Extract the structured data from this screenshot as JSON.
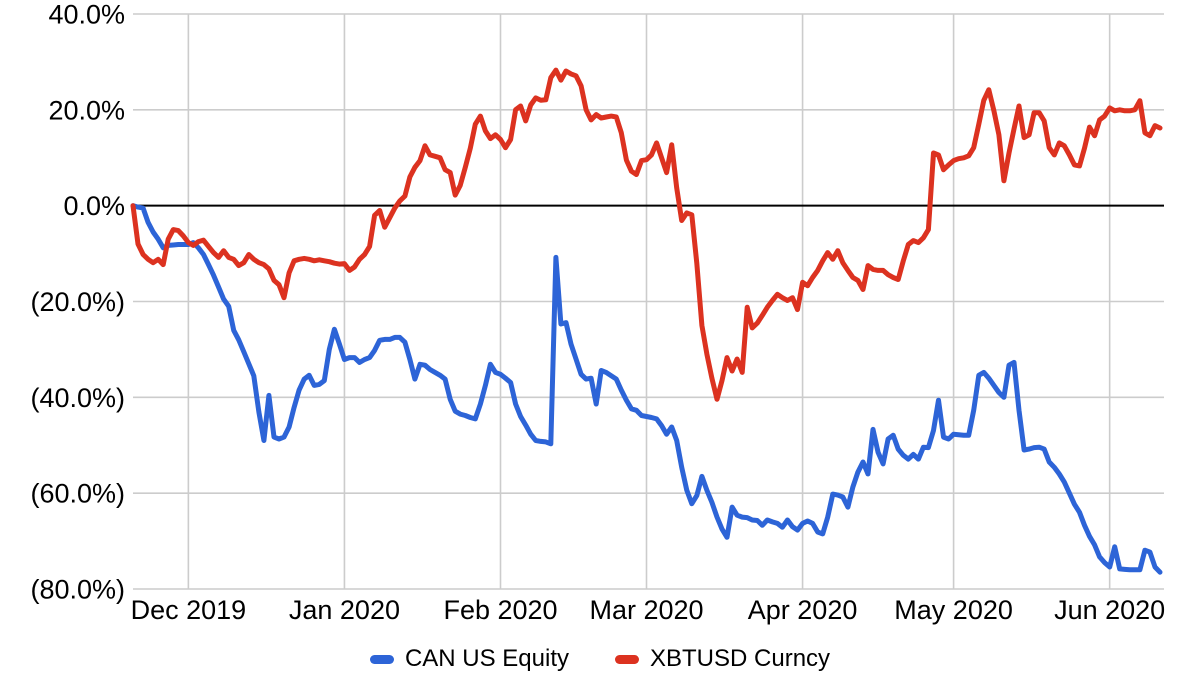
{
  "chart_data": {
    "type": "line",
    "title": "",
    "x_axis": {
      "start_date": "2019-11-20",
      "interval_days": 1,
      "total_days": 204,
      "tick_labels": [
        "Dec 2019",
        "Jan 2020",
        "Feb 2020",
        "Mar 2020",
        "Apr 2020",
        "May 2020",
        "Jun 2020"
      ],
      "tick_day_offsets": [
        11,
        42,
        73,
        102,
        133,
        163,
        194
      ]
    },
    "y_axis": {
      "unit": "percent",
      "min": -80,
      "max": 40,
      "tick_values": [
        40,
        20,
        0,
        -20,
        -40,
        -60,
        -80
      ],
      "tick_labels": [
        "40.0%",
        "20.0%",
        "0.0%",
        "(20.0%)",
        "(40.0%)",
        "(60.0%)",
        "(80.0%)"
      ],
      "negative_format": "parentheses"
    },
    "grid": {
      "show": true,
      "color": "#cccccc",
      "zero_line_color": "#000000"
    },
    "legend": {
      "position": "bottom",
      "items": [
        {
          "label": "CAN US Equity",
          "color": "#2d64d7"
        },
        {
          "label": "XBTUSD Curncy",
          "color": "#dc3220"
        }
      ]
    },
    "series": [
      {
        "name": "CAN US Equity",
        "color": "#2d64d7",
        "values": [
          0,
          -0.3,
          -0.5,
          -3.5,
          -5.5,
          -7,
          -8.8,
          -8.3,
          -8.2,
          -8.1,
          -8.1,
          -8.1,
          -7.7,
          -8.8,
          -10.2,
          -12.3,
          -14.5,
          -17,
          -19.5,
          -21,
          -26,
          -28,
          -30.5,
          -33,
          -35.5,
          -43.1,
          -49,
          -39.6,
          -48.3,
          -48.7,
          -48.3,
          -46.2,
          -42.1,
          -38.5,
          -36.2,
          -35.4,
          -37.5,
          -37.3,
          -36.5,
          -30,
          -25.8,
          -28.9,
          -32.1,
          -31.7,
          -31.7,
          -32.7,
          -32.1,
          -31.7,
          -30.2,
          -28.1,
          -27.9,
          -27.9,
          -27.5,
          -27.5,
          -28.5,
          -32.1,
          -36.2,
          -33.1,
          -33.3,
          -34.2,
          -34.8,
          -35.4,
          -36.2,
          -40.4,
          -42.9,
          -43.5,
          -43.8,
          -44.2,
          -44.5,
          -41.4,
          -37.5,
          -33.1,
          -34.8,
          -35.2,
          -36,
          -36.9,
          -41.4,
          -44,
          -45.8,
          -47.7,
          -49,
          -49.2,
          -49.3,
          -49.7,
          -10.8,
          -24.7,
          -24.4,
          -28.9,
          -32,
          -35.2,
          -36.2,
          -36,
          -41.4,
          -34.4,
          -34.8,
          -35.5,
          -36.2,
          -38.5,
          -40.6,
          -42.4,
          -42.7,
          -43.8,
          -44,
          -44.2,
          -44.5,
          -45.9,
          -47.7,
          -46.2,
          -49,
          -54.6,
          -59.4,
          -62.2,
          -60.5,
          -56.5,
          -59.4,
          -61.9,
          -65,
          -67.5,
          -69.2,
          -62.9,
          -64.6,
          -65,
          -65.1,
          -65.6,
          -65.7,
          -66.7,
          -65.6,
          -66,
          -66.3,
          -67.1,
          -65.6,
          -67,
          -67.7,
          -66.3,
          -65.8,
          -66.3,
          -68.1,
          -68.5,
          -65,
          -60.2,
          -60.4,
          -60.8,
          -62.9,
          -58.7,
          -55.6,
          -53.5,
          -56,
          -46.7,
          -51.5,
          -53.9,
          -48.7,
          -47.9,
          -50.8,
          -52.1,
          -52.9,
          -51.9,
          -52.9,
          -50.4,
          -50.5,
          -46.9,
          -40.6,
          -48.3,
          -48.7,
          -47.7,
          -47.8,
          -47.9,
          -47.9,
          -42.7,
          -35.4,
          -34.8,
          -36,
          -37.5,
          -39,
          -40,
          -33.3,
          -32.7,
          -42.7,
          -51,
          -50.8,
          -50.5,
          -50.4,
          -50.8,
          -53.5,
          -54.6,
          -56,
          -57.7,
          -60,
          -62.3,
          -64,
          -66.7,
          -69,
          -70.8,
          -73.3,
          -74.5,
          -75.4,
          -71.2,
          -75.8,
          -75.9,
          -76,
          -76,
          -76,
          -71.9,
          -72.3,
          -75.4,
          -76.5
        ]
      },
      {
        "name": "XBTUSD Curncy",
        "color": "#dc3220",
        "values": [
          0,
          -8,
          -10.2,
          -11.2,
          -11.9,
          -11.2,
          -12.3,
          -7,
          -5,
          -5.2,
          -6.3,
          -7.7,
          -8.3,
          -7.5,
          -7.2,
          -8.5,
          -9.8,
          -10.8,
          -9.4,
          -10.8,
          -11.2,
          -12.5,
          -11.9,
          -10.2,
          -11.2,
          -11.9,
          -12.3,
          -13.2,
          -15.6,
          -16.5,
          -19.2,
          -14,
          -11.5,
          -11.2,
          -11,
          -11.2,
          -11.5,
          -11.3,
          -11.5,
          -11.7,
          -12,
          -12.2,
          -12.1,
          -13.5,
          -12.8,
          -11.2,
          -10.2,
          -8.5,
          -2,
          -1,
          -4.5,
          -2.5,
          -0.5,
          1,
          2,
          6,
          8,
          9.4,
          12.5,
          10.6,
          10.3,
          10,
          7.5,
          6.9,
          2.2,
          4.2,
          8,
          12,
          17,
          18.7,
          15.6,
          14,
          14.8,
          13.8,
          12.1,
          13.8,
          20,
          20.8,
          17.7,
          21,
          22.5,
          22,
          22.1,
          26.7,
          28.3,
          26.2,
          28.1,
          27.5,
          27.1,
          25,
          20,
          17.9,
          19,
          18.3,
          18.5,
          18.7,
          18.5,
          15.2,
          9.5,
          7.2,
          6.5,
          9.4,
          9.6,
          10.6,
          13.1,
          10,
          6.9,
          12.7,
          3.7,
          -3.1,
          -1.5,
          -1.9,
          -12,
          -25,
          -31,
          -36,
          -40.4,
          -36.5,
          -31.7,
          -34.5,
          -32,
          -34.8,
          -21.2,
          -25.5,
          -24.5,
          -22.9,
          -21.2,
          -19.8,
          -18.5,
          -19.2,
          -19.8,
          -19.2,
          -21.7,
          -16,
          -16.7,
          -15,
          -13.5,
          -11.5,
          -9.8,
          -11.2,
          -9.4,
          -11.9,
          -13.5,
          -15,
          -15.6,
          -17.5,
          -12.5,
          -13.3,
          -13.5,
          -13.5,
          -14.4,
          -15,
          -15.4,
          -11.5,
          -8.1,
          -7.3,
          -7.7,
          -6.7,
          -5,
          11,
          10.6,
          7.5,
          8.5,
          9.4,
          9.8,
          10,
          10.4,
          12.1,
          17,
          22,
          24.2,
          19.8,
          14.8,
          5.2,
          11,
          16,
          20.8,
          14.2,
          14.8,
          19.4,
          19.4,
          17.7,
          12.1,
          10.6,
          13.1,
          12.5,
          10.6,
          8.5,
          8.3,
          12,
          16.4,
          14.6,
          17.9,
          18.7,
          20.4,
          19.8,
          20,
          19.8,
          19.8,
          20,
          21.9,
          15.2,
          14.6,
          16.7,
          16.2
        ]
      }
    ]
  }
}
